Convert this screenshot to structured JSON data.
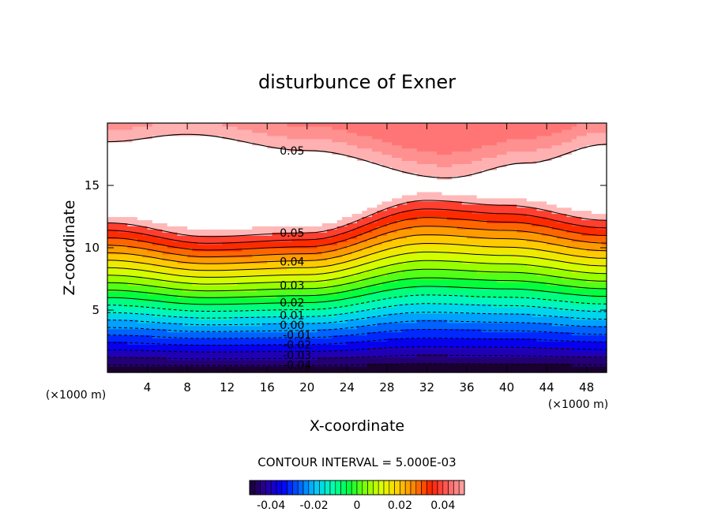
{
  "chart_data": {
    "type": "heatmap",
    "title": "disturbunce of Exner",
    "xlabel": "X-coordinate",
    "ylabel": "Z-coordinate",
    "x_units": "(×1000 m)",
    "y_units": "(×1000 m)",
    "xlim": [
      0,
      50
    ],
    "ylim": [
      0,
      20
    ],
    "x_ticks": [
      "4",
      "8",
      "12",
      "16",
      "20",
      "24",
      "28",
      "32",
      "36",
      "40",
      "44",
      "48"
    ],
    "y_ticks": [
      "5",
      "10",
      "15"
    ],
    "contour_interval_text": "CONTOUR INTERVAL = 5.000E-03",
    "contour_interval": 0.005,
    "contour_labels": [
      "0.05",
      "0.05",
      "0.04",
      "0.03",
      "0.02",
      "0.01",
      "0.00",
      "-0.01",
      "-0.02",
      "-0.03",
      "-0.04"
    ],
    "colorbar": {
      "min": -0.05,
      "max": 0.05,
      "ticks": [
        "-0.04",
        "-0.02",
        "0",
        "0.02",
        "0.04"
      ],
      "colors": [
        "#1a0030",
        "#2a00a0",
        "#0000ff",
        "#0060ff",
        "#00c8ff",
        "#00ffb0",
        "#00ff40",
        "#80ff00",
        "#e0ff00",
        "#ffd000",
        "#ff8000",
        "#ff2000",
        "#ff6060",
        "#ffa8a8"
      ]
    },
    "field": {
      "description_levels": "disturbance increases with height; white region (above 0.05 contour) between z≈11-13 and z≈15-19",
      "lower_contour_z_at_x": [
        [
          0,
          12.0
        ],
        [
          10,
          10.9
        ],
        [
          20,
          11.2
        ],
        [
          32,
          13.8
        ],
        [
          40,
          13.4
        ],
        [
          50,
          12.2
        ]
      ],
      "upper_contour_z_at_x": [
        [
          0,
          18.5
        ],
        [
          8,
          19.1
        ],
        [
          20,
          17.8
        ],
        [
          34,
          15.6
        ],
        [
          42,
          16.8
        ],
        [
          50,
          18.3
        ]
      ]
    }
  }
}
